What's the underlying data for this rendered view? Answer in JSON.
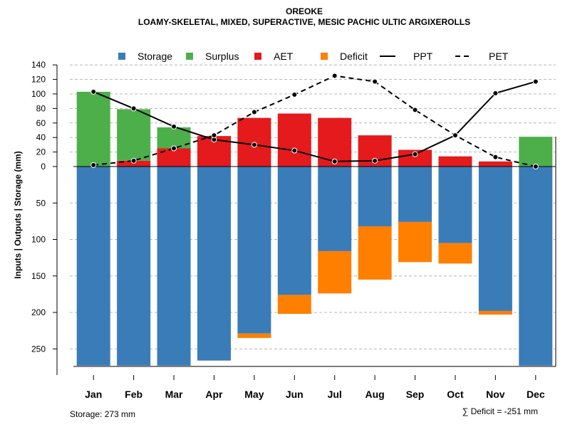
{
  "chart_data": {
    "type": "bar",
    "title": "OREOKE",
    "subtitle": "LOAMY-SKELETAL, MIXED, SUPERACTIVE, MESIC PACHIC ULTIC ARGIXEROLLS",
    "ylabel": "Inputs | Outputs | Storage     (mm)",
    "categories": [
      "Jan",
      "Feb",
      "Mar",
      "Apr",
      "May",
      "Jun",
      "Jul",
      "Aug",
      "Sep",
      "Oct",
      "Nov",
      "Dec"
    ],
    "upper_ticks": [
      "140",
      "120",
      "100",
      "80",
      "60",
      "40",
      "20",
      "0"
    ],
    "lower_ticks": [
      "50",
      "100",
      "150",
      "200",
      "250"
    ],
    "upper_ylim": [
      0,
      140
    ],
    "lower_ylim": [
      0,
      273
    ],
    "legend_position": "top",
    "legend": [
      {
        "label": "Storage",
        "color": "#3a7cb8",
        "kind": "box"
      },
      {
        "label": "Surplus",
        "color": "#4daf4a",
        "kind": "box"
      },
      {
        "label": "AET",
        "color": "#e41a1c",
        "kind": "box"
      },
      {
        "label": "Deficit",
        "color": "#ff7f00",
        "kind": "box"
      },
      {
        "label": "PPT",
        "color": "#000000",
        "kind": "solid"
      },
      {
        "label": "PET",
        "color": "#000000",
        "kind": "dashed"
      }
    ],
    "series": [
      {
        "name": "AET",
        "values": [
          0,
          8,
          25,
          42,
          67,
          73,
          67,
          43,
          23,
          14,
          7,
          0
        ]
      },
      {
        "name": "Surplus",
        "values": [
          103,
          71,
          29,
          0,
          0,
          0,
          0,
          0,
          0,
          0,
          0,
          41
        ]
      },
      {
        "name": "Storage",
        "values": [
          273,
          273,
          273,
          266,
          229,
          176,
          116,
          82,
          76,
          105,
          198,
          273
        ]
      },
      {
        "name": "Deficit",
        "values": [
          0,
          0,
          0,
          0,
          6,
          26,
          58,
          73,
          55,
          28,
          5,
          0
        ]
      },
      {
        "name": "PPT",
        "values": [
          103,
          80,
          55,
          37,
          30,
          22,
          7,
          8,
          17,
          43,
          101,
          117
        ]
      },
      {
        "name": "PET",
        "values": [
          2,
          8,
          25,
          43,
          75,
          99,
          125,
          117,
          78,
          43,
          13,
          0
        ]
      }
    ],
    "colors": {
      "storage": "#3a7cb8",
      "surplus": "#4daf4a",
      "aet": "#e41a1c",
      "deficit": "#ff7f00",
      "grid": "#b4b4b4"
    }
  },
  "footer": {
    "storage_note": "Storage: 273 mm",
    "deficit_note": "∑ Deficit = -251 mm"
  }
}
